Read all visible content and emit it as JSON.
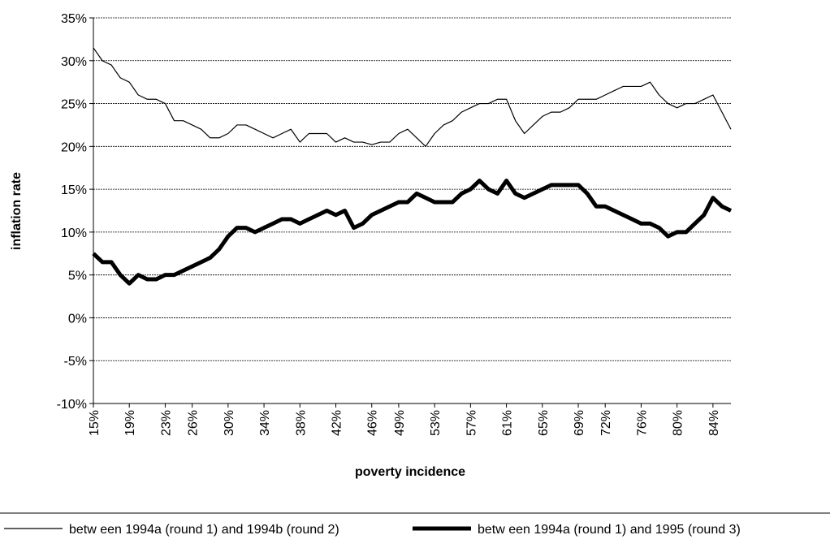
{
  "chart_data": {
    "type": "line",
    "x_label": "poverty incidence",
    "y_label": "inflation rate",
    "x": [
      15,
      16,
      17,
      18,
      19,
      20,
      21,
      22,
      23,
      24,
      25,
      26,
      27,
      28,
      29,
      30,
      31,
      32,
      33,
      34,
      35,
      36,
      37,
      38,
      39,
      40,
      41,
      42,
      43,
      44,
      45,
      46,
      47,
      48,
      49,
      50,
      51,
      52,
      53,
      54,
      55,
      56,
      57,
      58,
      59,
      60,
      61,
      62,
      63,
      64,
      65,
      66,
      67,
      68,
      69,
      70,
      71,
      72,
      73,
      74,
      75,
      76,
      77,
      78,
      79,
      80,
      81,
      82,
      83,
      84,
      85,
      86
    ],
    "series": [
      {
        "name": "betw een 1994a (round 1) and 1994b (round 2)",
        "color": "#000000",
        "width": 1.2,
        "values": [
          31.5,
          30,
          29.5,
          28,
          27.5,
          26,
          25.5,
          25.5,
          25,
          23,
          23,
          22.5,
          22,
          21,
          21,
          21.5,
          22.5,
          22.5,
          22,
          21.5,
          21,
          21.5,
          22,
          20.5,
          21.5,
          21.5,
          21.5,
          20.5,
          21,
          20.5,
          20.5,
          20.2,
          20.5,
          20.5,
          21.5,
          22,
          21,
          20,
          21.5,
          22.5,
          23,
          24,
          24.5,
          25,
          25,
          25.5,
          25.5,
          23,
          21.5,
          22.5,
          23.5,
          24,
          24,
          24.5,
          25.5,
          25.5,
          25.5,
          26,
          26.5,
          27,
          27,
          27,
          27.5,
          26,
          25,
          24.5,
          25,
          25,
          25.5,
          26,
          24,
          22
        ]
      },
      {
        "name": "betw een 1994a (round 1) and 1995 (round 3)",
        "color": "#000000",
        "width": 5,
        "values": [
          7.5,
          6.5,
          6.5,
          5,
          4,
          5,
          4.5,
          4.5,
          5,
          5,
          5.5,
          6,
          6.5,
          7,
          8,
          9.5,
          10.5,
          10.5,
          10,
          10.5,
          11,
          11.5,
          11.5,
          11,
          11.5,
          12,
          12.5,
          12,
          12.5,
          10.5,
          11,
          12,
          12.5,
          13,
          13.5,
          13.5,
          14.5,
          14,
          13.5,
          13.5,
          13.5,
          14.5,
          15,
          16,
          15,
          14.5,
          16,
          14.5,
          14,
          14.5,
          15,
          15.5,
          15.5,
          15.5,
          15.5,
          14.5,
          13,
          13,
          12.5,
          12,
          11.5,
          11,
          11,
          10.5,
          9.5,
          10,
          10,
          11,
          12,
          14,
          13,
          12.5
        ]
      }
    ],
    "xlim": [
      15,
      86
    ],
    "xticks": [
      {
        "value": 15,
        "label": "15%"
      },
      {
        "value": 19,
        "label": "19%"
      },
      {
        "value": 23,
        "label": "23%"
      },
      {
        "value": 26,
        "label": "26%"
      },
      {
        "value": 30,
        "label": "30%"
      },
      {
        "value": 34,
        "label": "34%"
      },
      {
        "value": 38,
        "label": "38%"
      },
      {
        "value": 42,
        "label": "42%"
      },
      {
        "value": 46,
        "label": "46%"
      },
      {
        "value": 49,
        "label": "49%"
      },
      {
        "value": 53,
        "label": "53%"
      },
      {
        "value": 57,
        "label": "57%"
      },
      {
        "value": 61,
        "label": "61%"
      },
      {
        "value": 65,
        "label": "65%"
      },
      {
        "value": 69,
        "label": "69%"
      },
      {
        "value": 72,
        "label": "72%"
      },
      {
        "value": 76,
        "label": "76%"
      },
      {
        "value": 80,
        "label": "80%"
      },
      {
        "value": 84,
        "label": "84%"
      }
    ],
    "ylim": [
      -10,
      35
    ],
    "yticks": [
      {
        "value": -10,
        "label": "-10%"
      },
      {
        "value": -5,
        "label": "-5%"
      },
      {
        "value": 0,
        "label": "0%"
      },
      {
        "value": 5,
        "label": "5%"
      },
      {
        "value": 10,
        "label": "10%"
      },
      {
        "value": 15,
        "label": "15%"
      },
      {
        "value": 20,
        "label": "20%"
      },
      {
        "value": 25,
        "label": "25%"
      },
      {
        "value": 30,
        "label": "30%"
      },
      {
        "value": 35,
        "label": "35%"
      }
    ],
    "grid": true,
    "legend": "bottom"
  }
}
